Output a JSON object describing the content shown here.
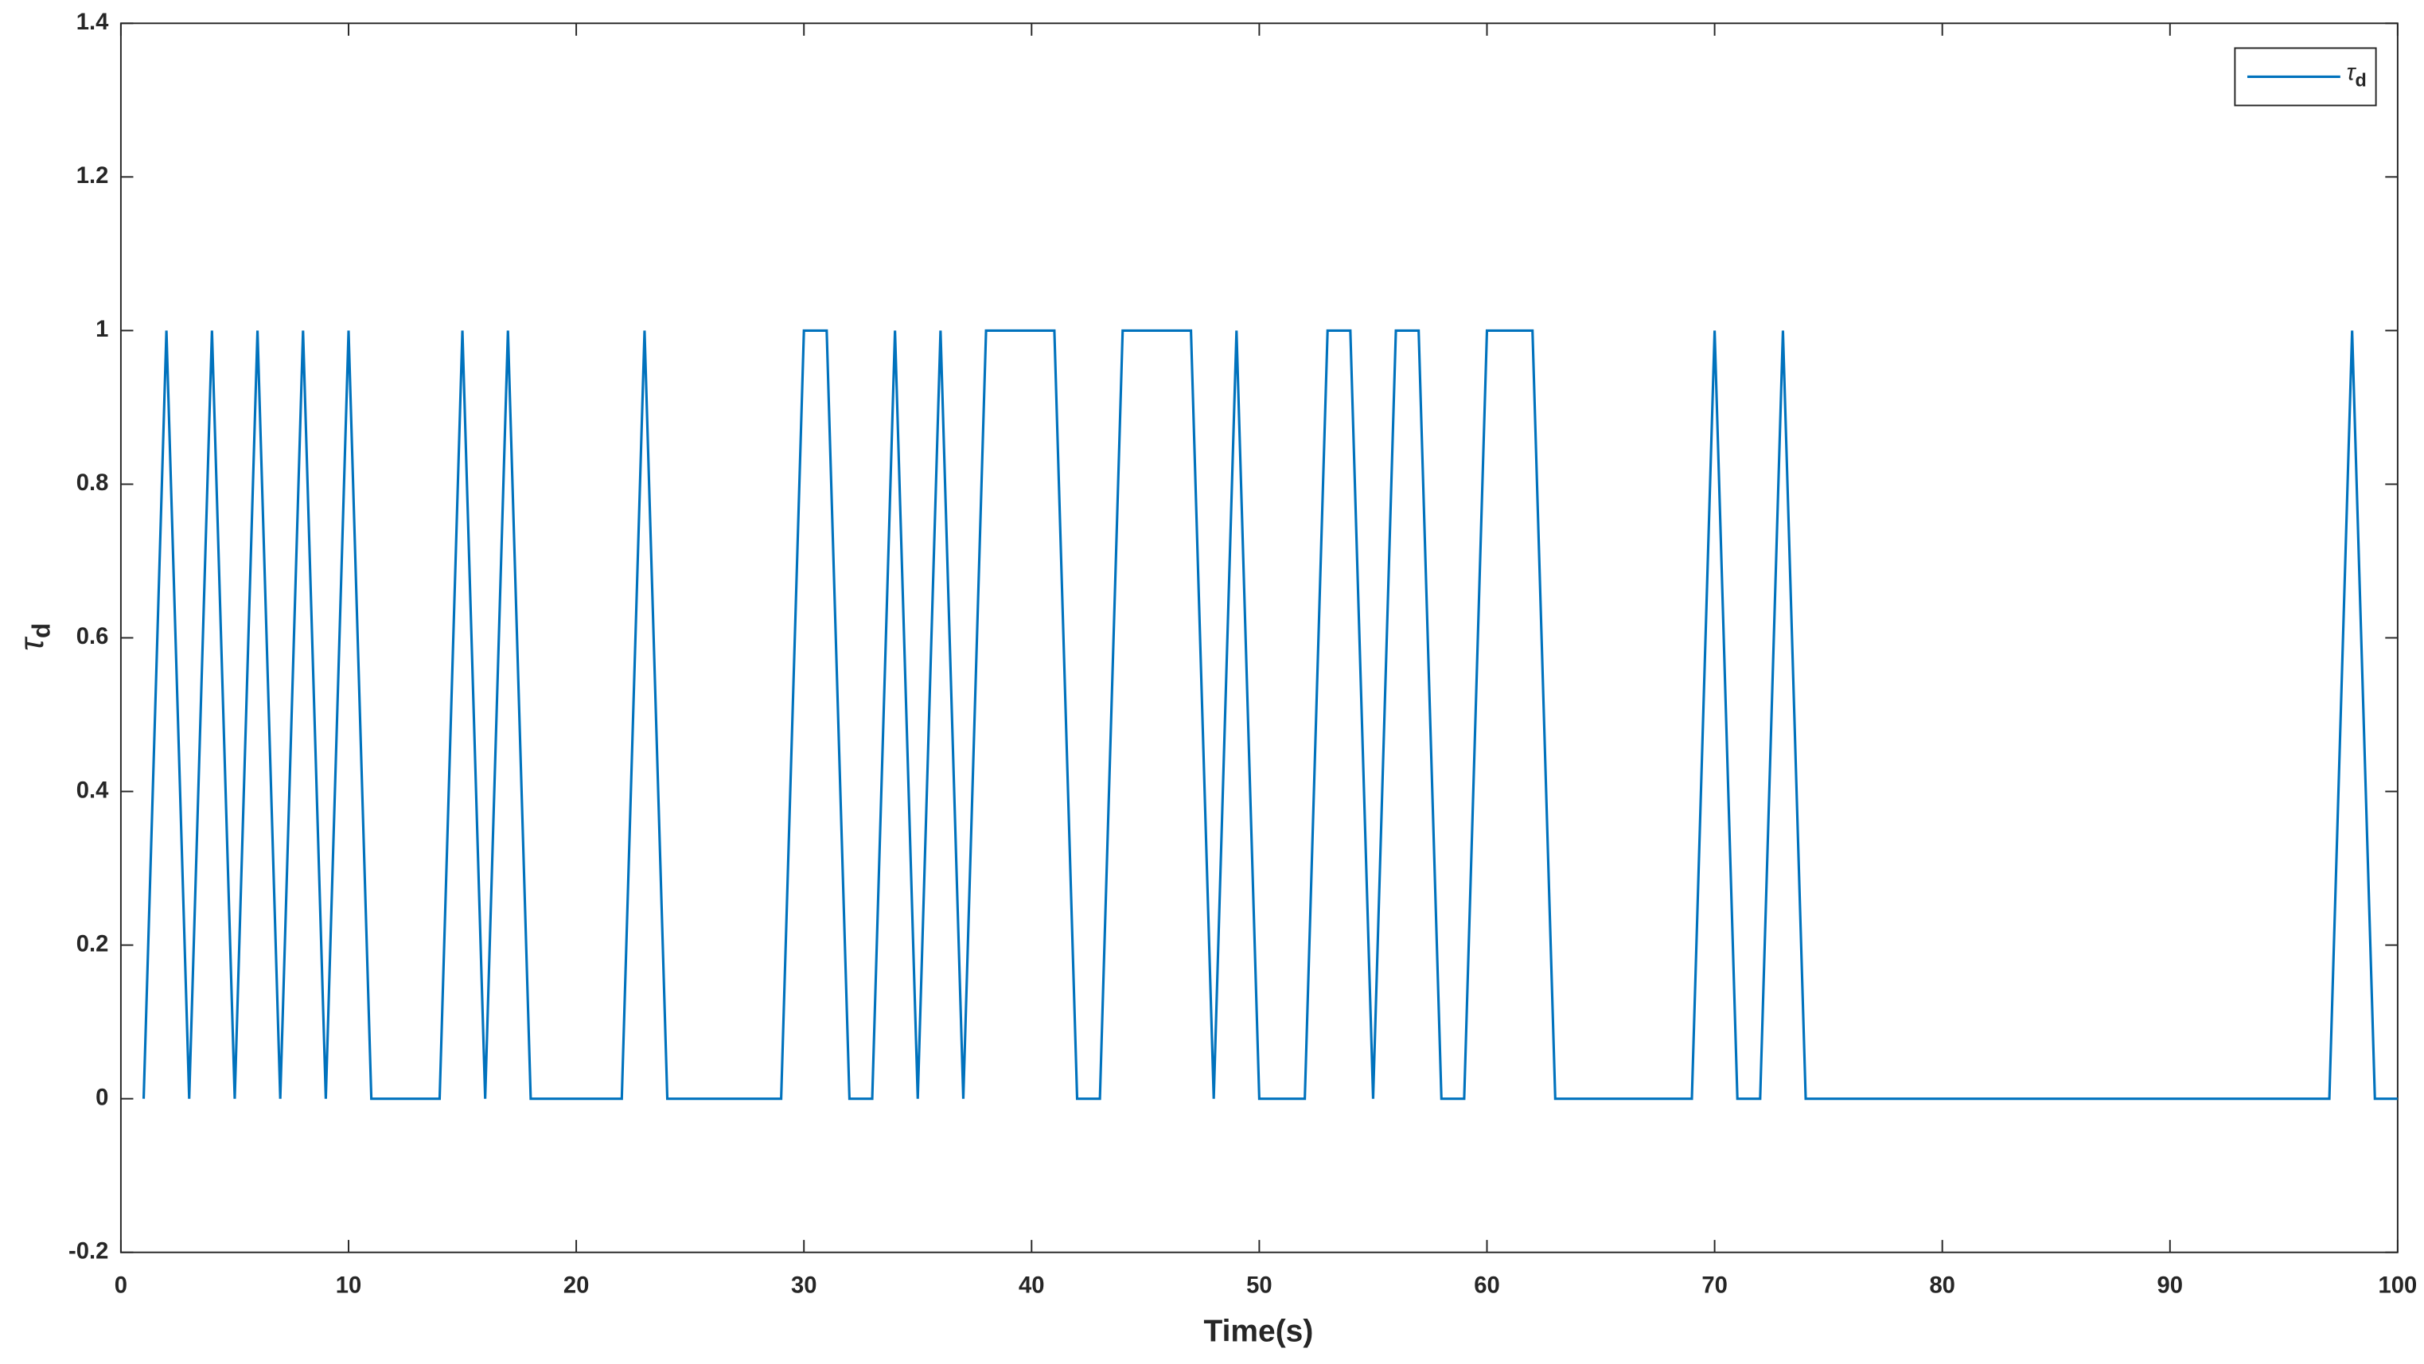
{
  "chart_data": {
    "type": "line",
    "xlabel": "Time(s)",
    "ylabel": [
      "τ",
      "d"
    ],
    "x": [
      1,
      2,
      3,
      4,
      5,
      6,
      7,
      8,
      9,
      10,
      11,
      12,
      13,
      14,
      15,
      16,
      17,
      18,
      19,
      20,
      21,
      22,
      23,
      24,
      25,
      26,
      27,
      28,
      29,
      30,
      31,
      32,
      33,
      34,
      35,
      36,
      37,
      38,
      39,
      40,
      41,
      42,
      43,
      44,
      45,
      46,
      47,
      48,
      49,
      50,
      51,
      52,
      53,
      54,
      55,
      56,
      57,
      58,
      59,
      60,
      61,
      62,
      63,
      64,
      65,
      66,
      67,
      68,
      69,
      70,
      71,
      72,
      73,
      74,
      75,
      76,
      77,
      78,
      79,
      80,
      81,
      82,
      83,
      84,
      85,
      86,
      87,
      88,
      89,
      90,
      91,
      92,
      93,
      94,
      95,
      96,
      97,
      98,
      99,
      100
    ],
    "series": [
      {
        "name": [
          "τ",
          "d"
        ],
        "color": "#0072bd",
        "values": [
          0,
          1,
          0,
          1,
          0,
          1,
          0,
          1,
          0,
          1,
          0,
          0,
          0,
          0,
          1,
          0,
          1,
          0,
          0,
          0,
          0,
          0,
          1,
          0,
          0,
          0,
          0,
          0,
          0,
          1,
          1,
          0,
          0,
          1,
          0,
          1,
          0,
          1,
          1,
          1,
          1,
          0,
          0,
          1,
          1,
          1,
          1,
          0,
          1,
          0,
          0,
          0,
          1,
          1,
          0,
          1,
          1,
          0,
          0,
          1,
          1,
          1,
          0,
          0,
          0,
          0,
          0,
          0,
          0,
          1,
          0,
          0,
          1,
          0,
          0,
          0,
          0,
          0,
          0,
          0,
          0,
          0,
          0,
          0,
          0,
          0,
          0,
          0,
          0,
          0,
          0,
          0,
          0,
          0,
          0,
          0,
          0,
          1,
          0,
          0
        ]
      }
    ],
    "xlim": [
      0,
      100
    ],
    "xticks": [
      0,
      10,
      20,
      30,
      40,
      50,
      60,
      70,
      80,
      90,
      100
    ],
    "ylim": [
      -0.2,
      1.4
    ],
    "yticks": [
      -0.2,
      0,
      0.2,
      0.4,
      0.6,
      0.8,
      1,
      1.2,
      1.4
    ],
    "grid": false,
    "legend": "upper right"
  }
}
